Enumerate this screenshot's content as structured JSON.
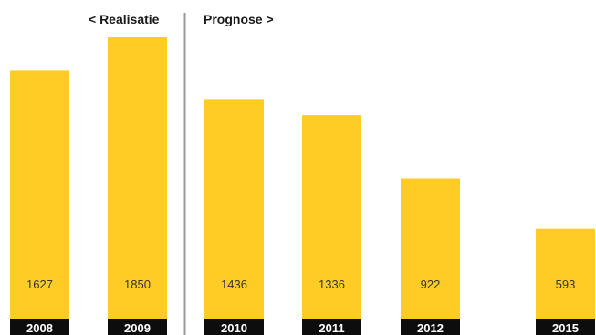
{
  "chart_data": {
    "type": "bar",
    "categories": [
      "2008",
      "2009",
      "2010",
      "2011",
      "2012",
      "2015"
    ],
    "values": [
      1627,
      1850,
      1436,
      1336,
      922,
      593
    ],
    "ylim": [
      0,
      1850
    ],
    "grid": false,
    "legend": "none",
    "sections": [
      {
        "label": "< Realisatie",
        "categories": [
          "2008",
          "2009"
        ]
      },
      {
        "label": "Prognose >",
        "categories": [
          "2010",
          "2011",
          "2012",
          "2015"
        ]
      }
    ]
  },
  "colors": {
    "bar": "#FFCC26",
    "category_band": "#0d0d0d",
    "divider": "#999999",
    "value_text": "#333333",
    "category_text": "#ffffff"
  }
}
